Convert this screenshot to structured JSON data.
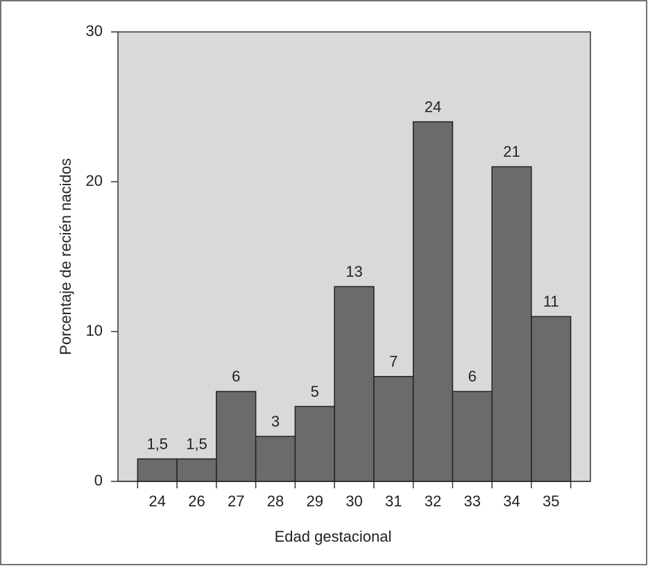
{
  "chart_data": {
    "type": "bar",
    "x_label": "Edad gestacional",
    "y_label": "Porcentaje de recién nacidos",
    "categories": [
      "24",
      "26",
      "27",
      "28",
      "29",
      "30",
      "31",
      "32",
      "33",
      "34",
      "35"
    ],
    "values": [
      1.5,
      1.5,
      6,
      3,
      5,
      13,
      7,
      24,
      6,
      21,
      11
    ],
    "value_labels": [
      "1,5",
      "1,5",
      "6",
      "3",
      "5",
      "13",
      "7",
      "24",
      "6",
      "21",
      "11"
    ],
    "color": "#6b6b6b",
    "ylim": [
      0,
      30
    ],
    "yticks": [
      0,
      10,
      20,
      30
    ]
  }
}
